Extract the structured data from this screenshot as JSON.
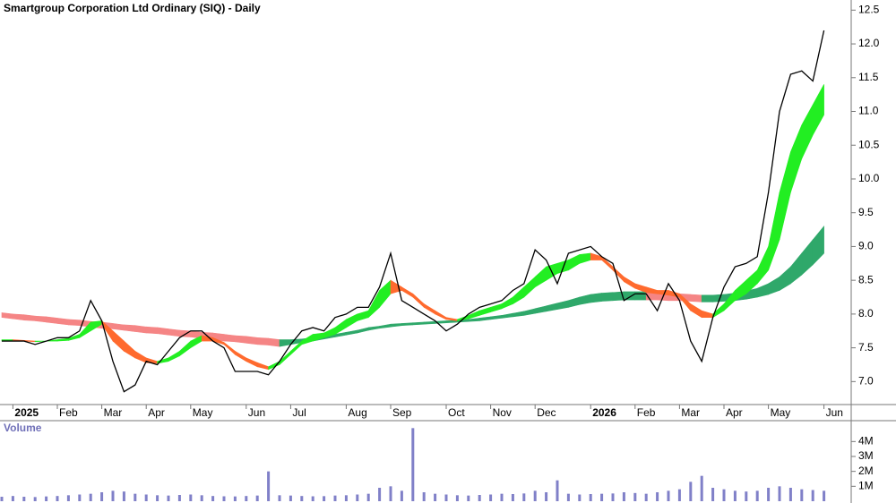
{
  "chart_data": [
    {
      "type": "line",
      "title": "Smartgroup Corporation Ltd Ordinary (SIQ) - Daily",
      "categories": [
        null,
        "2025",
        null,
        null,
        null,
        "Feb",
        null,
        null,
        null,
        "Mar",
        null,
        null,
        null,
        "Apr",
        null,
        null,
        null,
        "May",
        null,
        null,
        null,
        null,
        "Jun",
        null,
        null,
        null,
        "Jul",
        null,
        null,
        null,
        null,
        "Aug",
        null,
        null,
        null,
        "Sep",
        null,
        null,
        null,
        null,
        "Oct",
        null,
        null,
        null,
        "Nov",
        null,
        null,
        null,
        "Dec",
        null,
        null,
        null,
        null,
        "2026",
        null,
        null,
        null,
        "Feb",
        null,
        null,
        null,
        "Mar",
        null,
        null,
        null,
        "Apr",
        null,
        null,
        null,
        "May",
        null,
        null,
        null,
        null,
        "Jun"
      ],
      "ylim": [
        6.66,
        12.65
      ],
      "yticks": [
        {
          "value": 7,
          "label": "7.0"
        },
        7.5,
        {
          "value": 8,
          "label": "8.0"
        },
        8.5,
        {
          "value": 9,
          "label": "9.0"
        },
        9.5,
        {
          "value": 10,
          "label": "10.0"
        },
        10.5,
        {
          "value": 11,
          "label": "11.0"
        },
        11.5,
        {
          "value": 12,
          "label": "12.0"
        },
        12.5
      ],
      "series": [
        {
          "color": "#000000",
          "values": [
            7.6,
            7.6,
            7.6,
            7.55,
            7.6,
            7.65,
            7.65,
            7.75,
            8.2,
            7.9,
            7.3,
            6.85,
            6.95,
            7.3,
            7.25,
            7.45,
            7.65,
            7.75,
            7.75,
            7.6,
            7.5,
            7.15,
            7.15,
            7.15,
            7.1,
            7.3,
            7.55,
            7.75,
            7.8,
            7.75,
            7.95,
            8.0,
            8.1,
            8.1,
            8.4,
            8.9,
            8.2,
            8.1,
            8.0,
            7.9,
            7.75,
            7.85,
            8.0,
            8.1,
            8.15,
            8.2,
            8.35,
            8.45,
            8.95,
            8.8,
            8.45,
            8.9,
            8.95,
            9.0,
            8.85,
            8.75,
            8.2,
            8.3,
            8.3,
            8.05,
            8.45,
            8.2,
            7.6,
            7.3,
            7.95,
            8.4,
            8.7,
            8.75,
            8.85,
            9.8,
            11.0,
            11.55,
            11.6,
            11.45,
            12.2
          ]
        }
      ],
      "bands": [
        {
          "up_color": "#2fa86a",
          "down_color": "#f58585",
          "upper": [
            8.02,
            8.0,
            7.99,
            7.97,
            7.96,
            7.94,
            7.92,
            7.91,
            7.89,
            7.88,
            7.86,
            7.84,
            7.83,
            7.81,
            7.8,
            7.78,
            7.76,
            7.75,
            7.73,
            7.72,
            7.7,
            7.68,
            7.67,
            7.65,
            7.64,
            7.62,
            7.62,
            7.63,
            7.65,
            7.67,
            7.7,
            7.73,
            7.76,
            7.8,
            7.82,
            7.85,
            7.86,
            7.87,
            7.88,
            7.89,
            7.9,
            7.91,
            7.92,
            7.94,
            7.96,
            7.98,
            8.01,
            8.04,
            8.08,
            8.12,
            8.16,
            8.2,
            8.25,
            8.29,
            8.31,
            8.32,
            8.33,
            8.33,
            8.33,
            8.32,
            8.31,
            8.3,
            8.29,
            8.28,
            8.28,
            8.29,
            8.31,
            8.34,
            8.38,
            8.45,
            8.55,
            8.7,
            8.9,
            9.1,
            9.3
          ],
          "lower": [
            7.95,
            7.93,
            7.91,
            7.9,
            7.88,
            7.86,
            7.84,
            7.83,
            7.81,
            7.79,
            7.78,
            7.76,
            7.74,
            7.72,
            7.71,
            7.69,
            7.67,
            7.66,
            7.64,
            7.62,
            7.6,
            7.59,
            7.57,
            7.55,
            7.54,
            7.52,
            7.55,
            7.58,
            7.6,
            7.63,
            7.66,
            7.69,
            7.72,
            7.76,
            7.79,
            7.81,
            7.83,
            7.84,
            7.85,
            7.86,
            7.87,
            7.88,
            7.89,
            7.9,
            7.92,
            7.94,
            7.96,
            7.98,
            8.01,
            8.04,
            8.07,
            8.1,
            8.14,
            8.17,
            8.19,
            8.2,
            8.21,
            8.21,
            8.21,
            8.21,
            8.2,
            8.2,
            8.19,
            8.18,
            8.18,
            8.19,
            8.2,
            8.22,
            8.25,
            8.29,
            8.35,
            8.45,
            8.58,
            8.73,
            8.9
          ]
        },
        {
          "up_color": "#22ee22",
          "down_color": "#ff6a2e",
          "upper": [
            7.62,
            7.62,
            7.61,
            7.6,
            7.6,
            7.62,
            7.64,
            7.7,
            7.88,
            7.9,
            7.75,
            7.6,
            7.45,
            7.35,
            7.3,
            7.35,
            7.45,
            7.6,
            7.68,
            7.65,
            7.58,
            7.45,
            7.35,
            7.28,
            7.22,
            7.3,
            7.45,
            7.6,
            7.7,
            7.72,
            7.8,
            7.92,
            8.0,
            8.05,
            8.35,
            8.5,
            8.4,
            8.3,
            8.15,
            8.05,
            7.95,
            7.92,
            7.98,
            8.05,
            8.1,
            8.15,
            8.25,
            8.4,
            8.55,
            8.7,
            8.75,
            8.8,
            8.88,
            8.9,
            8.85,
            8.7,
            8.55,
            8.45,
            8.4,
            8.35,
            8.35,
            8.3,
            8.15,
            8.05,
            8.0,
            8.15,
            8.35,
            8.5,
            8.65,
            9.0,
            9.8,
            10.4,
            10.8,
            11.1,
            11.4
          ],
          "lower": [
            7.6,
            7.6,
            7.6,
            7.59,
            7.6,
            7.6,
            7.61,
            7.65,
            7.75,
            7.85,
            7.6,
            7.45,
            7.35,
            7.28,
            7.27,
            7.3,
            7.38,
            7.5,
            7.6,
            7.6,
            7.55,
            7.4,
            7.3,
            7.22,
            7.18,
            7.25,
            7.4,
            7.55,
            7.6,
            7.65,
            7.7,
            7.8,
            7.9,
            7.95,
            8.1,
            8.3,
            8.35,
            8.25,
            8.1,
            8.0,
            7.92,
            7.9,
            7.93,
            7.98,
            8.03,
            8.08,
            8.15,
            8.25,
            8.4,
            8.5,
            8.6,
            8.65,
            8.75,
            8.8,
            8.8,
            8.65,
            8.48,
            8.38,
            8.32,
            8.3,
            8.28,
            8.25,
            8.05,
            7.95,
            7.95,
            8.05,
            8.2,
            8.3,
            8.45,
            8.65,
            9.1,
            9.8,
            10.3,
            10.65,
            10.95
          ]
        }
      ]
    },
    {
      "type": "bar",
      "title": "Volume",
      "color": "#8080c8",
      "ylim": [
        0,
        5400000
      ],
      "yticks": [
        {
          "value": 1000000,
          "label": "1M"
        },
        {
          "value": 2000000,
          "label": "2M"
        },
        {
          "value": 3000000,
          "label": "3M"
        },
        {
          "value": 4000000,
          "label": "4M"
        }
      ],
      "values": [
        300000,
        350000,
        300000,
        280000,
        320000,
        350000,
        400000,
        450000,
        500000,
        600000,
        700000,
        650000,
        500000,
        450000,
        400000,
        380000,
        420000,
        450000,
        400000,
        350000,
        330000,
        320000,
        350000,
        380000,
        2000000,
        400000,
        380000,
        350000,
        330000,
        340000,
        380000,
        400000,
        450000,
        500000,
        900000,
        1000000,
        700000,
        4900000,
        600000,
        500000,
        450000,
        400000,
        380000,
        420000,
        450000,
        500000,
        480000,
        520000,
        700000,
        600000,
        1400000,
        500000,
        450000,
        480000,
        500000,
        520000,
        600000,
        550000,
        500000,
        600000,
        700000,
        800000,
        1300000,
        1700000,
        900000,
        800000,
        700000,
        650000,
        700000,
        900000,
        1000000,
        900000,
        800000,
        750000,
        700000
      ]
    }
  ]
}
